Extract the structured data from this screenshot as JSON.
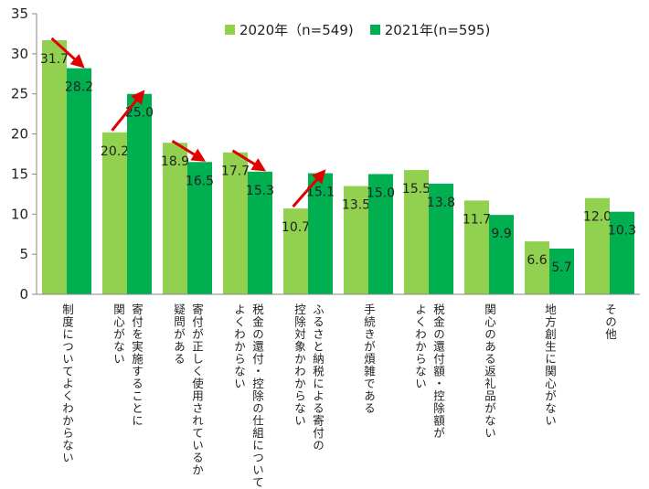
{
  "chart_data": {
    "type": "bar",
    "title": "",
    "xlabel": "",
    "ylabel": "",
    "ylim": [
      0,
      35
    ],
    "yticks": [
      "0",
      "5",
      "10",
      "15",
      "20",
      "25",
      "30",
      "35"
    ],
    "grid": false,
    "legend_position": "top",
    "categories": [
      [
        "制度についてよくわからない"
      ],
      [
        "寄付を実施することに",
        "関心がない"
      ],
      [
        "寄付が正しく使用されているか",
        "疑問がある"
      ],
      [
        "税金の還付・控除の仕組について",
        "よくわからない"
      ],
      [
        "ふるさと納税による寄付の",
        "控除対象かわからない"
      ],
      [
        "手続きが煩雑である"
      ],
      [
        "税金の還付額・控除額が",
        "よくわからない"
      ],
      [
        "関心のある返礼品がない"
      ],
      [
        "地方創生に関心がない"
      ],
      [
        "その他"
      ]
    ],
    "series": [
      {
        "name": "2020年（n=549)",
        "color": "#92d050",
        "values": [
          31.7,
          20.2,
          18.9,
          17.7,
          10.7,
          13.5,
          15.5,
          11.7,
          6.6,
          12.0
        ],
        "labels": [
          "31.7",
          "20.2",
          "18.9",
          "17.7",
          "10.7",
          "13.5",
          "15.5",
          "11.7",
          "6.6",
          "12.0"
        ]
      },
      {
        "name": "2021年(n=595)",
        "color": "#00b050",
        "values": [
          28.2,
          25.0,
          16.5,
          15.3,
          15.1,
          15.0,
          13.8,
          9.9,
          5.7,
          10.3
        ],
        "labels": [
          "28.2",
          "25.0",
          "16.5",
          "15.3",
          "15.1",
          "15.0",
          "13.8",
          "9.9",
          "5.7",
          "10.3"
        ]
      }
    ],
    "annotations": {
      "arrow_color": "#e00000",
      "arrows": [
        {
          "category_index": 0,
          "direction": "down"
        },
        {
          "category_index": 1,
          "direction": "up"
        },
        {
          "category_index": 2,
          "direction": "down"
        },
        {
          "category_index": 3,
          "direction": "down"
        },
        {
          "category_index": 4,
          "direction": "up"
        }
      ]
    }
  }
}
